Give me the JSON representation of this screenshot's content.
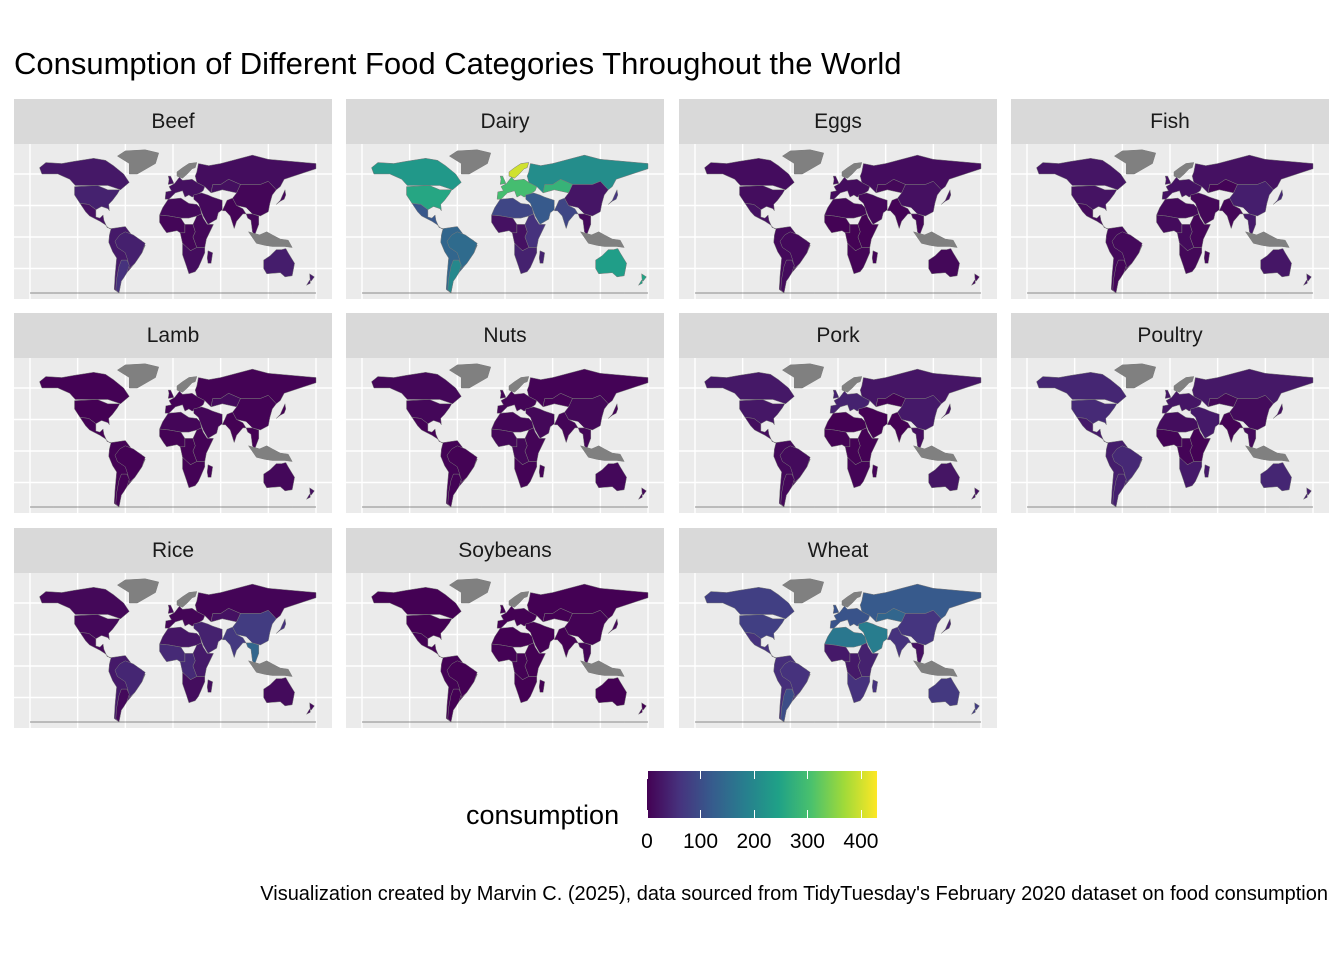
{
  "title": "Consumption of Different Food Categories Throughout the World",
  "caption": "Visualization created by Marvin C. (2025), data sourced from TidyTuesday's February 2020 dataset on food consumption",
  "chart_data": {
    "type": "choropleth-facets",
    "fill_variable": "consumption",
    "no_data_color": "#808080",
    "colorscale": "viridis",
    "colorscale_stops": [
      "#440154",
      "#46337e",
      "#365c8d",
      "#277f8e",
      "#1fa187",
      "#4ac16d",
      "#a0da39",
      "#fde725"
    ],
    "legend": {
      "title": "consumption",
      "range": [
        0,
        430
      ],
      "ticks": [
        0,
        100,
        200,
        300,
        400
      ],
      "tick_labels": [
        "0",
        "100",
        "200",
        "300",
        "400"
      ],
      "position": "bottom"
    },
    "facets": [
      {
        "name": "Beef",
        "levels": {
          "na": 28,
          "ca": 24,
          "us": 40,
          "mx": 20,
          "sa": 30,
          "br": 38,
          "ar": 60,
          "eu": 18,
          "ru": 15,
          "naf": 10,
          "waf": 6,
          "eaf": 8,
          "saf": 15,
          "me": 10,
          "ca_as": 18,
          "in": 3,
          "cn": 6,
          "sea": 6,
          "jp": 9,
          "au": 35,
          "nz": 30
        }
      },
      {
        "name": "Dairy",
        "levels": {
          "na": 230,
          "ca": 230,
          "us": 255,
          "mx": 115,
          "sa": 140,
          "br": 150,
          "ar": 200,
          "eu": 300,
          "nord": 400,
          "ru": 210,
          "naf": 90,
          "waf": 20,
          "eaf": 60,
          "saf": 40,
          "me": 120,
          "ca_as": 280,
          "in": 90,
          "cn": 25,
          "sea": 10,
          "jp": 65,
          "au": 240,
          "nz": 250
        }
      },
      {
        "name": "Eggs",
        "levels": {
          "na": 14,
          "ca": 14,
          "us": 15,
          "mx": 20,
          "sa": 10,
          "br": 10,
          "ar": 12,
          "eu": 13,
          "ru": 14,
          "naf": 7,
          "waf": 2,
          "eaf": 2,
          "saf": 5,
          "me": 9,
          "ca_as": 8,
          "in": 3,
          "cn": 19,
          "sea": 6,
          "jp": 19,
          "au": 8,
          "nz": 10
        }
      },
      {
        "name": "Fish",
        "levels": {
          "na": 25,
          "ca": 24,
          "us": 22,
          "mx": 12,
          "sa": 10,
          "br": 10,
          "ar": 6,
          "eu": 20,
          "ru": 20,
          "naf": 10,
          "waf": 12,
          "eaf": 6,
          "saf": 8,
          "me": 8,
          "ca_as": 4,
          "in": 6,
          "cn": 36,
          "sea": 30,
          "jp": 48,
          "au": 26,
          "nz": 26
        }
      },
      {
        "name": "Lamb",
        "levels": {
          "na": 1,
          "ca": 1,
          "us": 0.5,
          "mx": 1,
          "sa": 2,
          "br": 1,
          "ar": 2,
          "eu": 3,
          "ru": 2,
          "naf": 6,
          "waf": 2,
          "eaf": 3,
          "saf": 3,
          "me": 6,
          "ca_as": 12,
          "in": 0.7,
          "cn": 3,
          "sea": 0.5,
          "jp": 0.2,
          "au": 9,
          "nz": 18
        }
      },
      {
        "name": "Nuts",
        "levels": {
          "na": 7,
          "ca": 7,
          "us": 7,
          "mx": 3,
          "sa": 3,
          "br": 2,
          "ar": 3,
          "eu": 5,
          "ru": 3,
          "naf": 6,
          "waf": 8,
          "eaf": 5,
          "saf": 3,
          "me": 8,
          "ca_as": 2,
          "in": 5,
          "cn": 8,
          "sea": 6,
          "jp": 4,
          "au": 9,
          "nz": 8
        }
      },
      {
        "name": "Pork",
        "levels": {
          "na": 28,
          "ca": 26,
          "us": 27,
          "mx": 15,
          "sa": 10,
          "br": 12,
          "ar": 8,
          "eu": 40,
          "ru": 25,
          "naf": 0.5,
          "waf": 2,
          "eaf": 1,
          "saf": 4,
          "me": 0.3,
          "ca_as": 3,
          "in": 0.3,
          "cn": 30,
          "sea": 15,
          "jp": 20,
          "au": 24,
          "nz": 20
        }
      },
      {
        "name": "Poultry",
        "levels": {
          "na": 45,
          "ca": 35,
          "us": 50,
          "mx": 30,
          "sa": 35,
          "br": 48,
          "ar": 38,
          "eu": 25,
          "ru": 28,
          "naf": 15,
          "waf": 4,
          "eaf": 2,
          "saf": 30,
          "me": 30,
          "ca_as": 8,
          "in": 2,
          "cn": 12,
          "sea": 10,
          "jp": 18,
          "au": 46,
          "nz": 36
        }
      },
      {
        "name": "Rice",
        "levels": {
          "na": 8,
          "ca": 8,
          "us": 9,
          "mx": 8,
          "sa": 30,
          "br": 45,
          "ar": 10,
          "eu": 5,
          "ru": 4,
          "naf": 25,
          "waf": 50,
          "eaf": 30,
          "saf": 15,
          "me": 40,
          "ca_as": 20,
          "in": 70,
          "cn": 75,
          "sea": 140,
          "jp": 60,
          "au": 12,
          "nz": 10
        }
      },
      {
        "name": "Soybeans",
        "levels": {
          "na": 0.5,
          "ca": 0.5,
          "us": 0.6,
          "mx": 1,
          "sa": 1,
          "br": 0.5,
          "ar": 0.2,
          "eu": 0.2,
          "ru": 0.2,
          "naf": 0.1,
          "waf": 1,
          "eaf": 0.5,
          "saf": 0.3,
          "me": 0.2,
          "ca_as": 0.1,
          "in": 0.5,
          "cn": 2,
          "sea": 5,
          "jp": 8,
          "au": 0.1,
          "nz": 0.1
        }
      },
      {
        "name": "Wheat",
        "levels": {
          "na": 80,
          "ca": 80,
          "us": 80,
          "mx": 60,
          "sa": 55,
          "br": 60,
          "ar": 100,
          "eu": 110,
          "ru": 120,
          "naf": 170,
          "waf": 30,
          "eaf": 40,
          "saf": 60,
          "me": 180,
          "ca_as": 140,
          "in": 60,
          "cn": 65,
          "sea": 20,
          "jp": 40,
          "au": 70,
          "nz": 75
        }
      }
    ]
  }
}
